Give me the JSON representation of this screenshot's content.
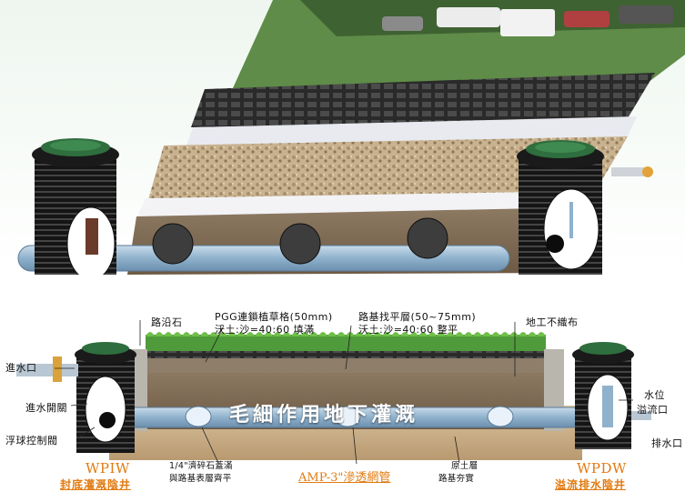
{
  "labels": {
    "curb": "路沿石",
    "pgg_line1": "PGG連鎖植草格(50mm)",
    "pgg_line2": "沃土:沙=40:60 填滿",
    "leveling_line1": "路基找平層(50~75mm)",
    "leveling_line2": "沃土:沙=40:60 整平",
    "geotextile": "地工不織布",
    "inlet": "進水口",
    "inlet_valve": "進水開關",
    "float_valve": "浮球控制閥",
    "water_level_line1": "水位",
    "water_level_line2": "溢流口",
    "outlet": "排水口",
    "main_title": "毛細作用地下灌溉",
    "gravel_line1": "1/4\"濟碎石蓋滿",
    "gravel_line2": "與路基表層齊平",
    "pipe": "AMP-3\"滲透網管",
    "subgrade_line1": "原土層",
    "subgrade_line2": "路基夯實",
    "wpiw_code": "WPIW",
    "wpiw_name": "封底灌溉陰井",
    "wpdw_code": "WPDW",
    "wpdw_name": "溢流排水陰井"
  },
  "colors": {
    "accent_orange": "#e27a10",
    "grass": "#4f9a3a",
    "soil": "#8a6a48",
    "pipe": "#9ab8cf",
    "well": "#1e1e1e"
  }
}
